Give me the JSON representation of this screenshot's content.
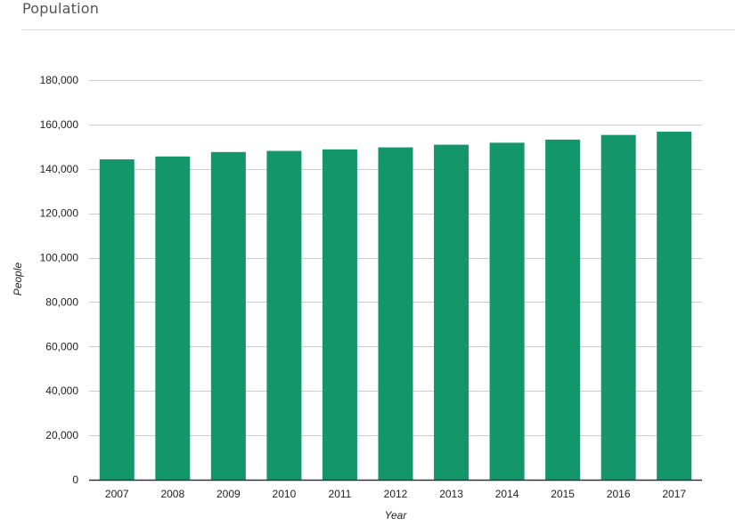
{
  "panel": {
    "title": "Population"
  },
  "colors": {
    "bar": "#14966b",
    "gridline": "#cccccc",
    "baseline": "#333333"
  },
  "chart_data": {
    "type": "bar",
    "title": "",
    "xlabel": "Year",
    "ylabel": "People",
    "categories": [
      "2007",
      "2008",
      "2009",
      "2010",
      "2011",
      "2012",
      "2013",
      "2014",
      "2015",
      "2016",
      "2017"
    ],
    "series": [
      {
        "values": [
          144300,
          145600,
          147600,
          148100,
          148800,
          149700,
          150900,
          151800,
          153200,
          155300,
          156800
        ]
      }
    ],
    "ylim": [
      0,
      180000
    ],
    "yticks": [
      0,
      20000,
      40000,
      60000,
      80000,
      100000,
      120000,
      140000,
      160000,
      180000
    ],
    "ytick_labels": [
      "0",
      "20,000",
      "40,000",
      "60,000",
      "80,000",
      "100,000",
      "120,000",
      "140,000",
      "160,000",
      "180,000"
    ],
    "grid": true,
    "legend": "none"
  }
}
